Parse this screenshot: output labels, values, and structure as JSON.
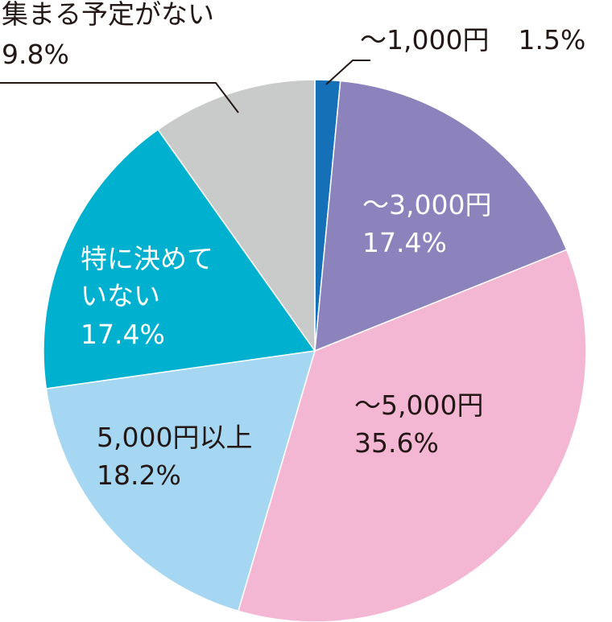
{
  "chart_data": {
    "type": "pie",
    "start": "12 o'clock",
    "direction": "clockwise",
    "slices": [
      {
        "name": "～1,000円",
        "value": 1.5,
        "value_label": "1.5%",
        "color": "#1570b8",
        "label_color": "#231815"
      },
      {
        "name": "～3,000円",
        "value": 17.4,
        "value_label": "17.4%",
        "color": "#8c82bc",
        "label_color": "#ffffff"
      },
      {
        "name": "～5,000円",
        "value": 35.6,
        "value_label": "35.6%",
        "color": "#f3b6d3",
        "label_color": "#231815"
      },
      {
        "name": "5,000円以上",
        "value": 18.2,
        "value_label": "18.2%",
        "color": "#a5d7f3",
        "label_color": "#231815"
      },
      {
        "name": "特に決めていない",
        "name_lines": [
          "特に決めて",
          "いない"
        ],
        "value": 17.4,
        "value_label": "17.4%",
        "color": "#00b0cf",
        "label_color": "#ffffff"
      },
      {
        "name": "集まる予定がない",
        "value": 9.8,
        "value_label": "9.8%",
        "color": "#c9caca",
        "label_color": "#231815"
      }
    ]
  }
}
